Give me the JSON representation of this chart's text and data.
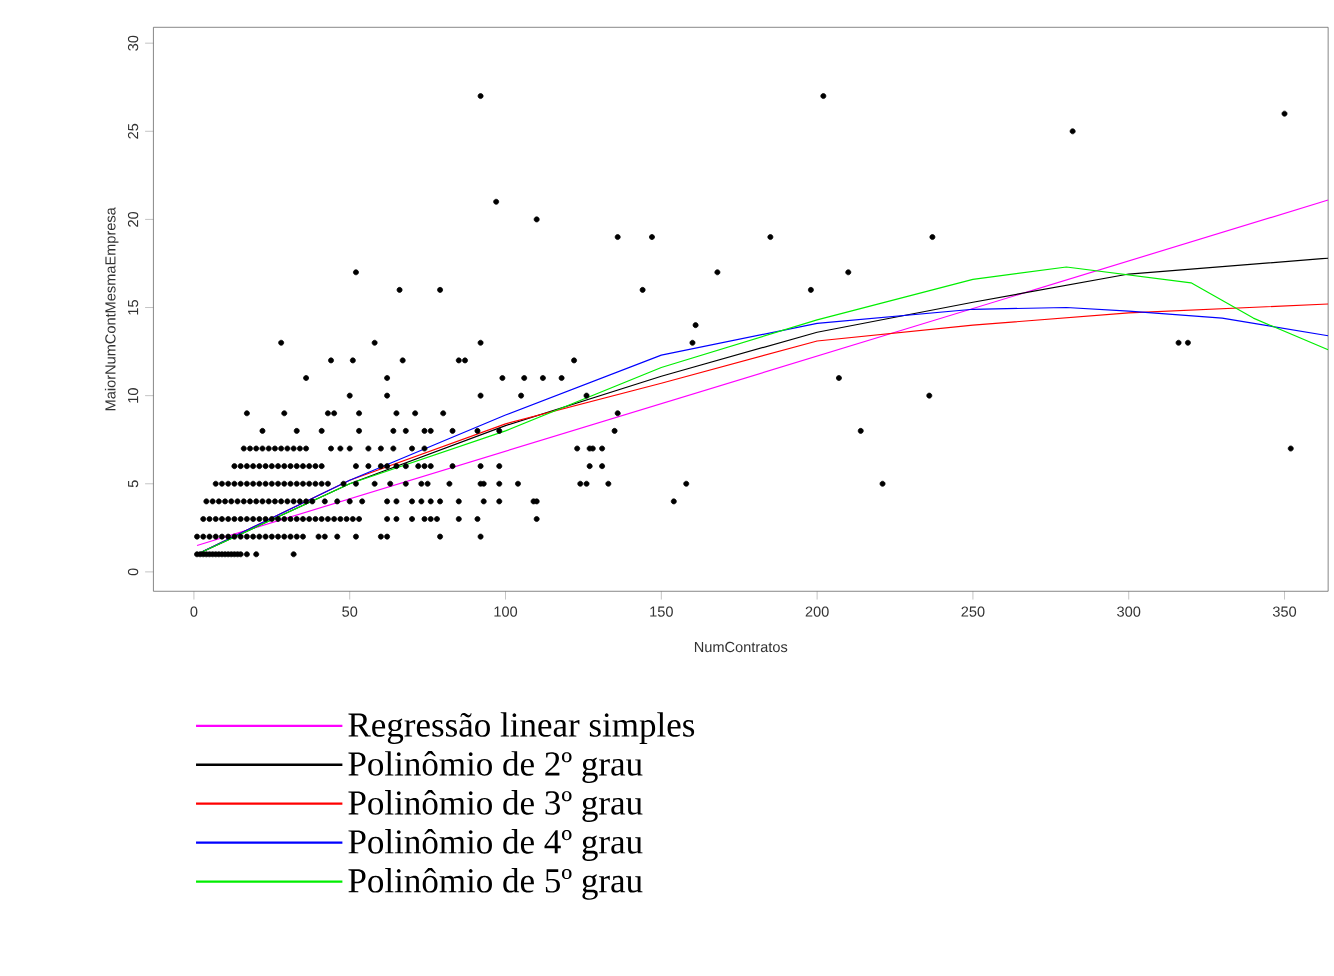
{
  "chart_data": {
    "type": "scatter",
    "xlabel": "NumContratos",
    "ylabel": "MaiorNumContMesmaEmpresa",
    "xlim": [
      -13,
      364
    ],
    "ylim": [
      -1.1,
      30.9
    ],
    "xticks": [
      0,
      50,
      100,
      150,
      200,
      250,
      300,
      350
    ],
    "yticks": [
      0,
      5,
      10,
      15,
      20,
      25,
      30
    ],
    "grid": false,
    "legend": "bottom",
    "line_style": "solid",
    "series": [
      {
        "color": "#000000",
        "marker": "circle",
        "x": [
          1,
          2,
          3,
          4,
          5,
          6,
          7,
          8,
          9,
          10,
          11,
          12,
          13,
          14,
          15,
          17,
          20,
          32,
          1,
          3,
          5,
          7,
          9,
          11,
          13,
          15,
          17,
          19,
          21,
          23,
          25,
          27,
          29,
          31,
          33,
          35,
          40,
          42,
          46,
          52,
          60,
          62,
          79,
          92,
          3,
          5,
          7,
          9,
          11,
          13,
          15,
          17,
          19,
          21,
          23,
          25,
          27,
          29,
          31,
          33,
          35,
          37,
          39,
          41,
          43,
          45,
          47,
          49,
          51,
          53,
          62,
          65,
          70,
          74,
          76,
          78,
          85,
          91,
          110,
          4,
          6,
          8,
          10,
          12,
          14,
          16,
          18,
          20,
          22,
          24,
          26,
          28,
          30,
          32,
          34,
          36,
          38,
          42,
          46,
          50,
          54,
          62,
          65,
          70,
          73,
          76,
          79,
          85,
          93,
          98,
          109,
          110,
          154,
          7,
          9,
          11,
          13,
          15,
          17,
          19,
          21,
          23,
          25,
          27,
          29,
          31,
          33,
          35,
          37,
          39,
          41,
          43,
          48,
          52,
          58,
          63,
          68,
          73,
          75,
          82,
          92,
          93,
          98,
          104,
          124,
          126,
          133,
          158,
          221,
          13,
          15,
          17,
          19,
          21,
          23,
          25,
          27,
          29,
          31,
          33,
          35,
          37,
          39,
          41,
          52,
          56,
          60,
          62,
          65,
          68,
          72,
          74,
          76,
          83,
          92,
          98,
          127,
          131,
          16,
          18,
          20,
          22,
          24,
          26,
          28,
          30,
          32,
          34,
          36,
          44,
          47,
          50,
          56,
          60,
          64,
          70,
          74,
          123,
          127,
          128,
          131,
          352,
          22,
          33,
          41,
          53,
          64,
          68,
          74,
          76,
          83,
          91,
          98,
          135,
          214,
          17,
          29,
          43,
          45,
          53,
          65,
          71,
          80,
          136,
          50,
          62,
          92,
          105,
          126,
          236,
          36,
          62,
          99,
          106,
          112,
          118,
          207,
          44,
          51,
          67,
          85,
          87,
          122,
          28,
          58,
          92,
          160,
          316,
          319,
          161,
          66,
          79,
          144,
          198,
          52,
          168,
          210,
          136,
          147,
          185,
          237,
          110,
          97,
          282,
          350,
          92,
          202
        ],
        "values": [
          1,
          1,
          1,
          1,
          1,
          1,
          1,
          1,
          1,
          1,
          1,
          1,
          1,
          1,
          1,
          1,
          1,
          1,
          2,
          2,
          2,
          2,
          2,
          2,
          2,
          2,
          2,
          2,
          2,
          2,
          2,
          2,
          2,
          2,
          2,
          2,
          2,
          2,
          2,
          2,
          2,
          2,
          2,
          2,
          3,
          3,
          3,
          3,
          3,
          3,
          3,
          3,
          3,
          3,
          3,
          3,
          3,
          3,
          3,
          3,
          3,
          3,
          3,
          3,
          3,
          3,
          3,
          3,
          3,
          3,
          3,
          3,
          3,
          3,
          3,
          3,
          3,
          3,
          3,
          4,
          4,
          4,
          4,
          4,
          4,
          4,
          4,
          4,
          4,
          4,
          4,
          4,
          4,
          4,
          4,
          4,
          4,
          4,
          4,
          4,
          4,
          4,
          4,
          4,
          4,
          4,
          4,
          4,
          4,
          4,
          4,
          4,
          4,
          5,
          5,
          5,
          5,
          5,
          5,
          5,
          5,
          5,
          5,
          5,
          5,
          5,
          5,
          5,
          5,
          5,
          5,
          5,
          5,
          5,
          5,
          5,
          5,
          5,
          5,
          5,
          5,
          5,
          5,
          5,
          5,
          5,
          5,
          5,
          5,
          6,
          6,
          6,
          6,
          6,
          6,
          6,
          6,
          6,
          6,
          6,
          6,
          6,
          6,
          6,
          6,
          6,
          6,
          6,
          6,
          6,
          6,
          6,
          6,
          6,
          6,
          6,
          6,
          6,
          7,
          7,
          7,
          7,
          7,
          7,
          7,
          7,
          7,
          7,
          7,
          7,
          7,
          7,
          7,
          7,
          7,
          7,
          7,
          7,
          7,
          7,
          7,
          7,
          8,
          8,
          8,
          8,
          8,
          8,
          8,
          8,
          8,
          8,
          8,
          8,
          8,
          9,
          9,
          9,
          9,
          9,
          9,
          9,
          9,
          9,
          10,
          10,
          10,
          10,
          10,
          10,
          11,
          11,
          11,
          11,
          11,
          11,
          11,
          12,
          12,
          12,
          12,
          12,
          12,
          13,
          13,
          13,
          13,
          13,
          13,
          14,
          16,
          16,
          16,
          16,
          17,
          17,
          17,
          19,
          19,
          19,
          19,
          20,
          21,
          25,
          26,
          27,
          27
        ]
      },
      {
        "type": "line",
        "name": "Regressão linear simples",
        "color": "#ff00ff",
        "marker": "none",
        "x": [
          1,
          364
        ],
        "values": [
          1.5,
          21.1
        ]
      },
      {
        "type": "line",
        "name": "Polinômio de 2º grau",
        "color": "#000000",
        "marker": "none",
        "x": [
          1,
          50,
          100,
          150,
          200,
          250,
          300,
          364
        ],
        "values": [
          1.0,
          5.0,
          8.3,
          11.1,
          13.6,
          15.3,
          16.9,
          17.8
        ]
      },
      {
        "type": "line",
        "name": "Polinômio de 3º grau",
        "color": "#ff0000",
        "marker": "none",
        "x": [
          1,
          50,
          100,
          150,
          200,
          250,
          300,
          364
        ],
        "values": [
          1.0,
          5.2,
          8.4,
          10.7,
          13.1,
          14.0,
          14.7,
          15.2
        ]
      },
      {
        "type": "line",
        "name": "Polinômio de 4º grau",
        "color": "#0000ff",
        "marker": "none",
        "x": [
          1,
          50,
          100,
          150,
          200,
          250,
          280,
          300,
          330,
          364
        ],
        "values": [
          1.0,
          5.2,
          8.9,
          12.3,
          14.1,
          14.9,
          15.0,
          14.8,
          14.4,
          13.4
        ]
      },
      {
        "type": "line",
        "name": "Polinômio de 5º grau",
        "color": "#00ee00",
        "marker": "none",
        "x": [
          1,
          50,
          100,
          150,
          200,
          250,
          280,
          320,
          340,
          364
        ],
        "values": [
          1.0,
          5.0,
          8.0,
          11.6,
          14.3,
          16.6,
          17.3,
          16.4,
          14.4,
          12.6
        ]
      }
    ]
  }
}
